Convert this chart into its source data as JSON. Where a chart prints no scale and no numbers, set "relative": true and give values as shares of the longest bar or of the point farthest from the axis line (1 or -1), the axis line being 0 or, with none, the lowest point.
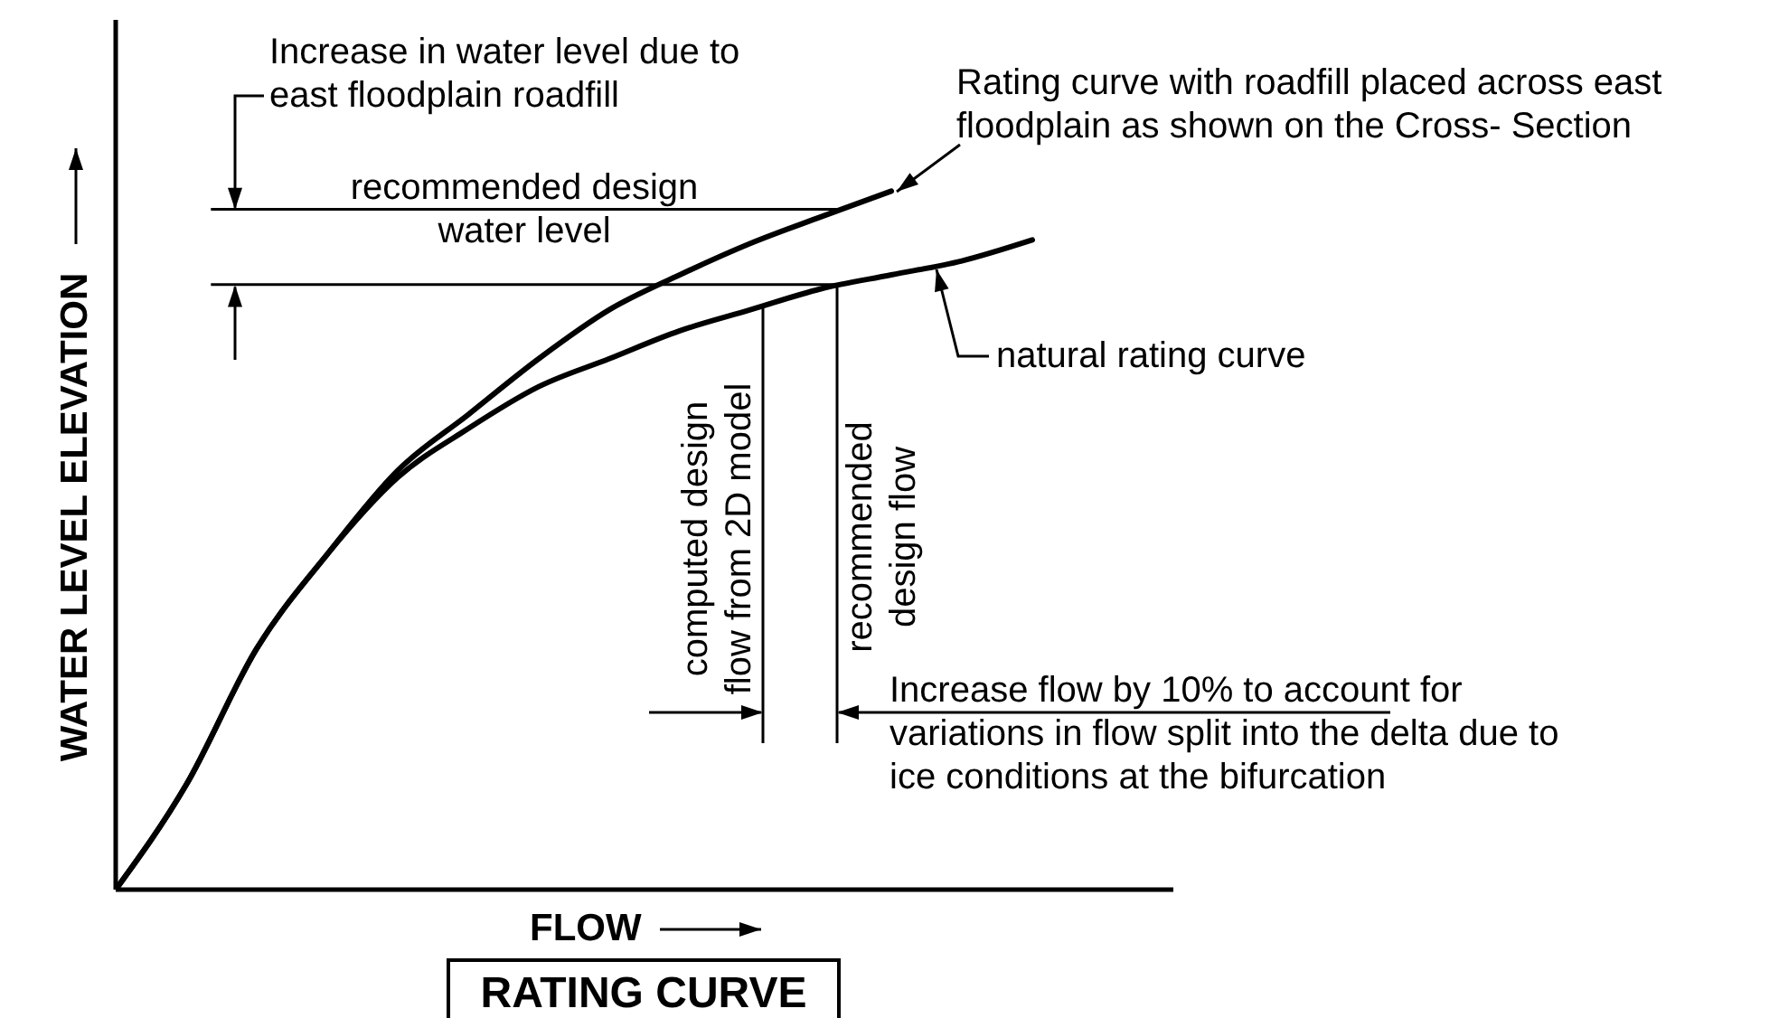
{
  "chart_data": {
    "type": "line",
    "title": "RATING CURVE",
    "xlabel": "FLOW",
    "ylabel": "WATER LEVEL ELEVATION",
    "relative": true,
    "marker": "none",
    "categories": [
      null,
      null,
      null,
      null,
      null,
      null,
      null,
      null,
      null,
      null,
      null,
      null,
      null,
      null,
      null,
      null
    ],
    "series": [
      {
        "name": "Rating curve with roadfill placed across east floodplain as shown on the Cross- Section",
        "color": "#000000",
        "values": [
          0,
          0.15,
          0.345,
          0.48,
          0.6,
          0.68,
          0.76,
          0.83,
          0.88,
          0.925,
          0.963,
          1.0,
          null,
          null,
          null,
          null
        ]
      },
      {
        "name": "natural rating curve",
        "color": "#000000",
        "values": [
          0,
          0.15,
          0.345,
          0.48,
          0.59,
          0.66,
          0.72,
          0.76,
          0.8,
          0.83,
          0.86,
          0.88,
          0.9,
          0.93,
          null,
          null
        ]
      }
    ],
    "ref_lines": [
      {
        "axis": "y",
        "value": 0.974,
        "label": "recommended design water level"
      },
      {
        "axis": "y",
        "value": 0.866,
        "label": null
      }
    ],
    "annotations": [
      "Increase in water level due to east floodplain roadfill",
      "computed design flow from 2D model",
      "recommended design flow",
      "Increase flow by 10% to account for variations in flow split into the delta due to ice conditions at the bifurcation"
    ]
  }
}
